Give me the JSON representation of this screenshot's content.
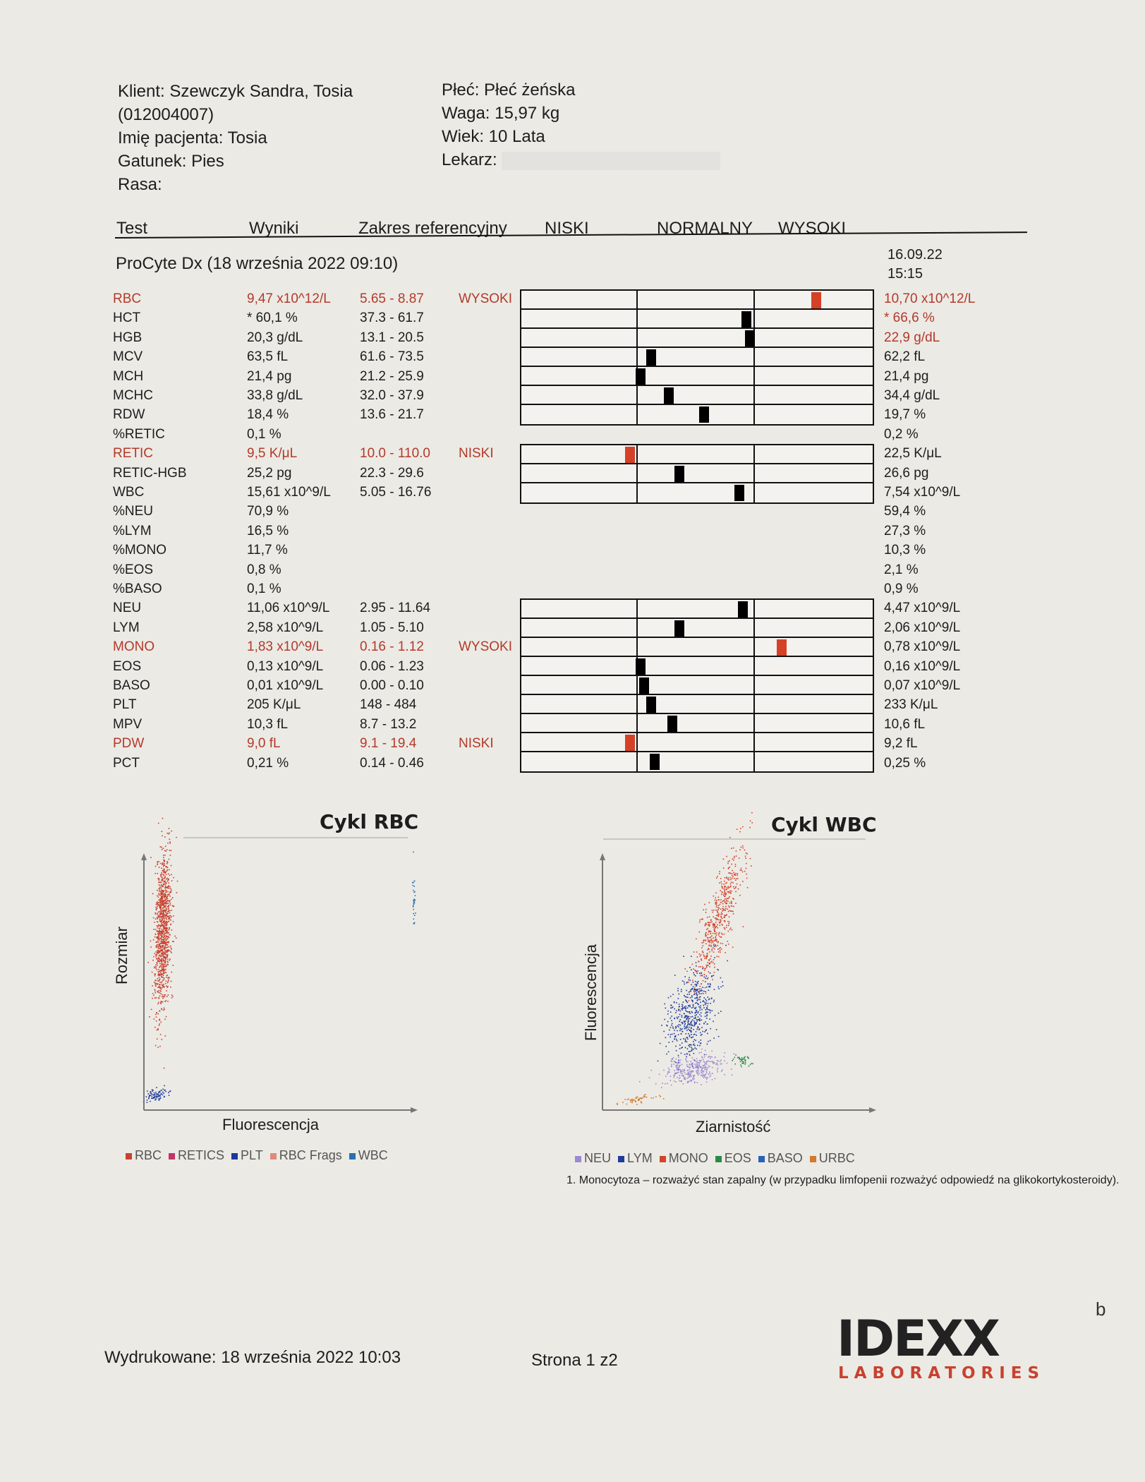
{
  "header": {
    "client": "Klient: Szewczyk Sandra, Tosia",
    "client_id": "(012004007)",
    "patient": "Imię pacjenta: Tosia",
    "species": "Gatunek: Pies",
    "breed": "Rasa:",
    "sex": "Płeć: Płeć żeńska",
    "weight": "Waga: 15,97 kg",
    "age": "Wiek: 10 Lata",
    "doctor": "Lekarz:"
  },
  "columns": {
    "test": "Test",
    "results": "Wyniki",
    "reference": "Zakres referencyjny",
    "low": "NISKI",
    "normal": "NORMALNY",
    "high": "WYSOKI"
  },
  "section": {
    "title": "ProCyte Dx (18 września 2022 09:10)",
    "prev_date": "16.09.22",
    "prev_time": "15:15"
  },
  "colors": {
    "abnormal": "#b23a2a",
    "marker_abnormal": "#d44127",
    "marker_normal": "#000000"
  },
  "rows": [
    {
      "name": "RBC",
      "result": "9,47 x10^12/L",
      "ref": "5.65 - 8.87",
      "flag": "WYSOKI",
      "prev": "10,70 x10^12/L",
      "abnormal": true,
      "prev_abnormal": true,
      "level": 0.84
    },
    {
      "name": "HCT",
      "result": "* 60,1 %",
      "ref": "37.3 - 61.7",
      "flag": "",
      "prev": "* 66,6 %",
      "abnormal": false,
      "prev_abnormal": true,
      "level": 0.64
    },
    {
      "name": "HGB",
      "result": "20,3 g/dL",
      "ref": "13.1 - 20.5",
      "flag": "",
      "prev": "22,9 g/dL",
      "abnormal": false,
      "prev_abnormal": true,
      "level": 0.65
    },
    {
      "name": "MCV",
      "result": "63,5 fL",
      "ref": "61.6 - 73.5",
      "flag": "",
      "prev": "62,2 fL",
      "abnormal": false,
      "prev_abnormal": false,
      "level": 0.37
    },
    {
      "name": "MCH",
      "result": "21,4 pg",
      "ref": "21.2 - 25.9",
      "flag": "",
      "prev": "21,4 pg",
      "abnormal": false,
      "prev_abnormal": false,
      "level": 0.34
    },
    {
      "name": "MCHC",
      "result": "33,8 g/dL",
      "ref": "32.0 - 37.9",
      "flag": "",
      "prev": "34,4 g/dL",
      "abnormal": false,
      "prev_abnormal": false,
      "level": 0.42
    },
    {
      "name": "RDW",
      "result": "18,4 %",
      "ref": "13.6 - 21.7",
      "flag": "",
      "prev": "19,7 %",
      "abnormal": false,
      "prev_abnormal": false,
      "level": 0.52
    },
    {
      "name": "%RETIC",
      "result": "0,1 %",
      "ref": "",
      "flag": "",
      "prev": "0,2 %",
      "abnormal": false,
      "prev_abnormal": false,
      "level": null
    },
    {
      "name": "RETIC",
      "result": "9,5 K/μL",
      "ref": "10.0 - 110.0",
      "flag": "NISKI",
      "prev": "22,5 K/μL",
      "abnormal": true,
      "prev_abnormal": false,
      "level": 0.31
    },
    {
      "name": "RETIC-HGB",
      "result": "25,2 pg",
      "ref": "22.3 - 29.6",
      "flag": "",
      "prev": "26,6 pg",
      "abnormal": false,
      "prev_abnormal": false,
      "level": 0.45
    },
    {
      "name": "WBC",
      "result": "15,61 x10^9/L",
      "ref": "5.05 - 16.76",
      "flag": "",
      "prev": "7,54 x10^9/L",
      "abnormal": false,
      "prev_abnormal": false,
      "level": 0.62
    },
    {
      "name": "%NEU",
      "result": "70,9 %",
      "ref": "",
      "flag": "",
      "prev": "59,4 %",
      "abnormal": false,
      "prev_abnormal": false,
      "level": null
    },
    {
      "name": "%LYM",
      "result": "16,5 %",
      "ref": "",
      "flag": "",
      "prev": "27,3 %",
      "abnormal": false,
      "prev_abnormal": false,
      "level": null
    },
    {
      "name": "%MONO",
      "result": "11,7 %",
      "ref": "",
      "flag": "",
      "prev": "10,3 %",
      "abnormal": false,
      "prev_abnormal": false,
      "level": null
    },
    {
      "name": "%EOS",
      "result": "0,8 %",
      "ref": "",
      "flag": "",
      "prev": "2,1 %",
      "abnormal": false,
      "prev_abnormal": false,
      "level": null
    },
    {
      "name": "%BASO",
      "result": "0,1 %",
      "ref": "",
      "flag": "",
      "prev": "0,9 %",
      "abnormal": false,
      "prev_abnormal": false,
      "level": null
    },
    {
      "name": "NEU",
      "result": "11,06 x10^9/L",
      "ref": "2.95 - 11.64",
      "flag": "",
      "prev": "4,47 x10^9/L",
      "abnormal": false,
      "prev_abnormal": false,
      "level": 0.63
    },
    {
      "name": "LYM",
      "result": "2,58 x10^9/L",
      "ref": "1.05 - 5.10",
      "flag": "",
      "prev": "2,06 x10^9/L",
      "abnormal": false,
      "prev_abnormal": false,
      "level": 0.45
    },
    {
      "name": "MONO",
      "result": "1,83 x10^9/L",
      "ref": "0.16 - 1.12",
      "flag": "WYSOKI",
      "prev": "0,78 x10^9/L",
      "abnormal": true,
      "prev_abnormal": false,
      "level": 0.74
    },
    {
      "name": "EOS",
      "result": "0,13 x10^9/L",
      "ref": "0.06 - 1.23",
      "flag": "",
      "prev": "0,16 x10^9/L",
      "abnormal": false,
      "prev_abnormal": false,
      "level": 0.34
    },
    {
      "name": "BASO",
      "result": "0,01 x10^9/L",
      "ref": "0.00 - 0.10",
      "flag": "",
      "prev": "0,07 x10^9/L",
      "abnormal": false,
      "prev_abnormal": false,
      "level": 0.35
    },
    {
      "name": "PLT",
      "result": "205 K/μL",
      "ref": "148 - 484",
      "flag": "",
      "prev": "233 K/μL",
      "abnormal": false,
      "prev_abnormal": false,
      "level": 0.37
    },
    {
      "name": "MPV",
      "result": "10,3 fL",
      "ref": "8.7 - 13.2",
      "flag": "",
      "prev": "10,6 fL",
      "abnormal": false,
      "prev_abnormal": false,
      "level": 0.43
    },
    {
      "name": "PDW",
      "result": "9,0 fL",
      "ref": "9.1 - 19.4",
      "flag": "NISKI",
      "prev": "9,2 fL",
      "abnormal": true,
      "prev_abnormal": false,
      "level": 0.31
    },
    {
      "name": "PCT",
      "result": "0,21 %",
      "ref": "0.14 - 0.46",
      "flag": "",
      "prev": "0,25 %",
      "abnormal": false,
      "prev_abnormal": false,
      "level": 0.38
    }
  ],
  "charts": {
    "rbc": {
      "title": "Cykl RBC",
      "xlabel": "Fluorescencja",
      "ylabel": "Rozmiar",
      "legend": [
        {
          "label": "RBC",
          "color": "#c8412f"
        },
        {
          "label": "RETICS",
          "color": "#c2336a"
        },
        {
          "label": "PLT",
          "color": "#1b3a9a"
        },
        {
          "label": "RBC Frags",
          "color": "#e08a7c"
        },
        {
          "label": "WBC",
          "color": "#2a6fb0"
        }
      ]
    },
    "wbc": {
      "title": "Cykl WBC",
      "xlabel": "Ziarnistość",
      "ylabel": "Fluorescencja",
      "legend": [
        {
          "label": "NEU",
          "color": "#9c8ad0"
        },
        {
          "label": "LYM",
          "color": "#1e3c9a"
        },
        {
          "label": "MONO",
          "color": "#d2452b"
        },
        {
          "label": "EOS",
          "color": "#2a8a45"
        },
        {
          "label": "BASO",
          "color": "#2a60b8"
        },
        {
          "label": "URBC",
          "color": "#d27a2b"
        }
      ]
    }
  },
  "note": "1. Monocytoza – rozważyć stan zapalny (w przypadku limfopenii rozważyć odpowiedź na glikokortykosteroidy).",
  "footer": {
    "printed": "Wydrukowane: 18 września 2022 10:03",
    "page": "Strona 1 z2"
  },
  "logo": {
    "name": "IDEXX",
    "sub": "LABORATORIES"
  },
  "margin_mark": "b"
}
